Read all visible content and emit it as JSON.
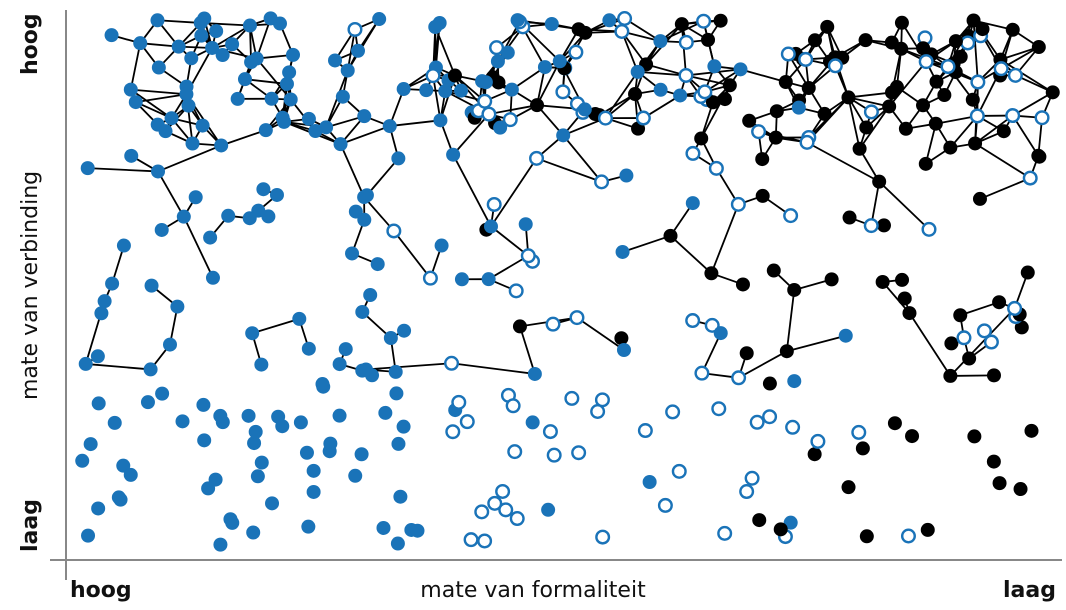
{
  "axis": {
    "x_label": "mate van formaliteit",
    "x_left": "hoog",
    "x_right": "laag",
    "y_label": "mate van verbinding",
    "y_top": "hoog",
    "y_bottom": "laag"
  },
  "colors": {
    "formal": "#1a73b8",
    "informal": "#000000",
    "semi": "#1a73b8",
    "axis": "#888888",
    "line": "#000000"
  },
  "node_kinds": [
    "formal-filled-blue",
    "semi-open-circle",
    "informal-filled-black"
  ]
}
